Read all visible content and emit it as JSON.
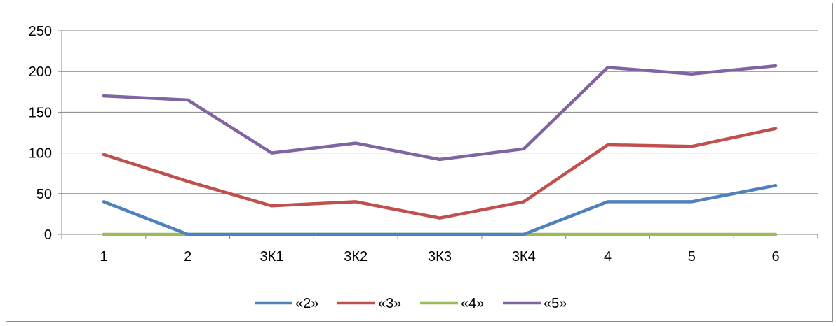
{
  "chart_data": {
    "type": "line",
    "title": "",
    "xlabel": "",
    "ylabel": "",
    "categories": [
      "1",
      "2",
      "3К1",
      "3К2",
      "3К3",
      "3К4",
      "4",
      "5",
      "6"
    ],
    "ylim": [
      0,
      250
    ],
    "yticks": [
      0,
      50,
      100,
      150,
      200,
      250
    ],
    "grid": true,
    "legend_position": "bottom",
    "series": [
      {
        "name": "«2»",
        "color": "#4f81bd",
        "values": [
          40,
          0,
          0,
          0,
          0,
          0,
          40,
          40,
          60
        ]
      },
      {
        "name": "«3»",
        "color": "#c0504d",
        "values": [
          98,
          65,
          35,
          40,
          20,
          40,
          110,
          108,
          130
        ]
      },
      {
        "name": "«4»",
        "color": "#9bbb59",
        "values": [
          0,
          0,
          0,
          0,
          0,
          0,
          0,
          0,
          0
        ]
      },
      {
        "name": "«5»",
        "color": "#8064a2",
        "values": [
          170,
          165,
          100,
          112,
          92,
          105,
          205,
          197,
          207
        ]
      }
    ]
  }
}
